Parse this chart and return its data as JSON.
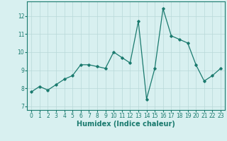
{
  "x": [
    0,
    1,
    2,
    3,
    4,
    5,
    6,
    7,
    8,
    9,
    10,
    11,
    12,
    13,
    14,
    15,
    16,
    17,
    18,
    19,
    20,
    21,
    22,
    23
  ],
  "y": [
    7.8,
    8.1,
    7.9,
    8.2,
    8.5,
    8.7,
    9.3,
    9.3,
    9.2,
    9.1,
    10.0,
    9.7,
    9.4,
    11.7,
    7.4,
    9.1,
    12.4,
    10.9,
    10.7,
    10.5,
    9.3,
    8.4,
    8.7,
    9.1
  ],
  "line_color": "#1a7a6e",
  "marker": "D",
  "marker_size": 1.8,
  "linewidth": 0.9,
  "bg_color": "#d8f0f0",
  "grid_color": "#b8d8d8",
  "xlabel": "Humidex (Indice chaleur)",
  "xlim": [
    -0.5,
    23.5
  ],
  "ylim": [
    6.8,
    12.8
  ],
  "yticks": [
    7,
    8,
    9,
    10,
    11,
    12
  ],
  "xticks": [
    0,
    1,
    2,
    3,
    4,
    5,
    6,
    7,
    8,
    9,
    10,
    11,
    12,
    13,
    14,
    15,
    16,
    17,
    18,
    19,
    20,
    21,
    22,
    23
  ],
  "tick_fontsize": 5.5,
  "xlabel_fontsize": 7.0
}
